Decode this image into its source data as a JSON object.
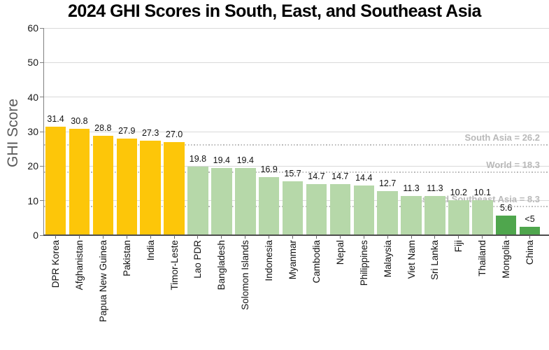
{
  "chart_data": {
    "type": "bar",
    "title": "2024 GHI Scores in South, East, and Southeast Asia",
    "ylabel": "GHI Score",
    "ylim": [
      0,
      60
    ],
    "yticks": [
      0,
      10,
      20,
      30,
      40,
      50,
      60
    ],
    "grid": true,
    "legend": "none",
    "categories": [
      "DPR Korea",
      "Afghanistan",
      "Papua New Guinea",
      "Pakistan",
      "India",
      "Timor-Leste",
      "Lao PDR",
      "Bangladesh",
      "Solomon Islands",
      "Indonesia",
      "Myanmar",
      "Cambodia",
      "Nepal",
      "Philippines",
      "Malaysia",
      "Viet Nam",
      "Sri Lanka",
      "Fiji",
      "Thailand",
      "Mongolia",
      "China"
    ],
    "values": [
      31.4,
      30.8,
      28.8,
      27.9,
      27.3,
      27.0,
      19.8,
      19.4,
      19.4,
      16.9,
      15.7,
      14.7,
      14.7,
      14.4,
      12.7,
      11.3,
      11.3,
      10.2,
      10.1,
      5.6,
      2.4
    ],
    "value_labels": [
      "31.4",
      "30.8",
      "28.8",
      "27.9",
      "27.3",
      "27.0",
      "19.8",
      "19.4",
      "19.4",
      "16.9",
      "15.7",
      "14.7",
      "14.7",
      "14.4",
      "12.7",
      "11.3",
      "11.3",
      "10.2",
      "10.1",
      "5.6",
      "<5"
    ],
    "reference_lines": [
      {
        "label": "South Asia = 26.2",
        "value": 26.2
      },
      {
        "label": "World = 18.3",
        "value": 18.3
      },
      {
        "label": "East and Southeast Asia = 8.3",
        "value": 8.3
      }
    ],
    "severity_thresholds": {
      "serious_min": 20,
      "moderate_min": 10
    },
    "colors": {
      "serious": "#FDC609",
      "moderate": "#B6D8A9",
      "low": "#4FA64D",
      "grid": "#D9D9D9",
      "reference": "#B9B9B9",
      "axis": "#4D4D4D",
      "title": "#000000",
      "ylabel": "#595959"
    }
  }
}
